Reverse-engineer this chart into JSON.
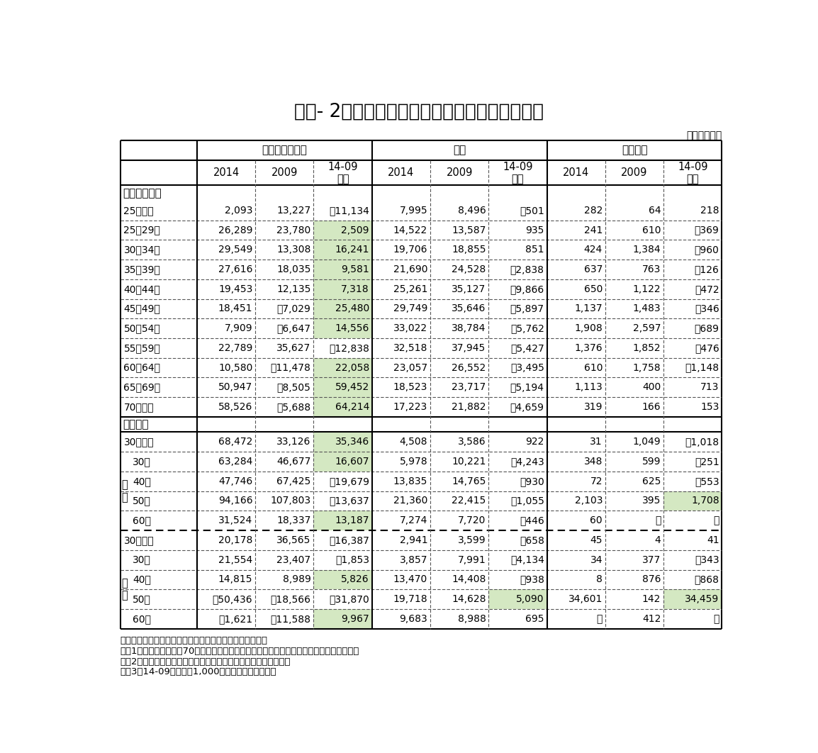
{
  "title": "図表- 2　勤労者世帯の金融商品への支出の推移",
  "unit_label": "（単位：円）",
  "col_groups": [
    "預貯金（純増）",
    "保険",
    "有価証券"
  ],
  "sub_cols": [
    "2014",
    "2009",
    "14-09\nの差"
  ],
  "section1_label": "二人以上世帯",
  "section2_label": "単身世帯",
  "rows_section1": [
    {
      "label": "25歳未満",
      "vals": [
        "2,093",
        "13,227",
        "－11,134",
        "7,995",
        "8,496",
        "－501",
        "282",
        "64",
        "218"
      ],
      "hl": [
        false,
        false,
        false,
        false,
        false,
        false,
        false,
        false,
        false
      ]
    },
    {
      "label": "25～29歳",
      "vals": [
        "26,289",
        "23,780",
        "2,509",
        "14,522",
        "13,587",
        "935",
        "241",
        "610",
        "－369"
      ],
      "hl": [
        false,
        false,
        true,
        false,
        false,
        false,
        false,
        false,
        false
      ]
    },
    {
      "label": "30～34歳",
      "vals": [
        "29,549",
        "13,308",
        "16,241",
        "19,706",
        "18,855",
        "851",
        "424",
        "1,384",
        "－960"
      ],
      "hl": [
        false,
        false,
        true,
        false,
        false,
        false,
        false,
        false,
        false
      ]
    },
    {
      "label": "35～39歳",
      "vals": [
        "27,616",
        "18,035",
        "9,581",
        "21,690",
        "24,528",
        "－2,838",
        "637",
        "763",
        "－126"
      ],
      "hl": [
        false,
        false,
        true,
        false,
        false,
        false,
        false,
        false,
        false
      ]
    },
    {
      "label": "40～44歳",
      "vals": [
        "19,453",
        "12,135",
        "7,318",
        "25,261",
        "35,127",
        "－9,866",
        "650",
        "1,122",
        "－472"
      ],
      "hl": [
        false,
        false,
        true,
        false,
        false,
        false,
        false,
        false,
        false
      ]
    },
    {
      "label": "45～49歳",
      "vals": [
        "18,451",
        "－7,029",
        "25,480",
        "29,749",
        "35,646",
        "－5,897",
        "1,137",
        "1,483",
        "－346"
      ],
      "hl": [
        false,
        false,
        true,
        false,
        false,
        false,
        false,
        false,
        false
      ]
    },
    {
      "label": "50～54歳",
      "vals": [
        "7,909",
        "－6,647",
        "14,556",
        "33,022",
        "38,784",
        "－5,762",
        "1,908",
        "2,597",
        "－689"
      ],
      "hl": [
        false,
        false,
        true,
        false,
        false,
        false,
        false,
        false,
        false
      ]
    },
    {
      "label": "55～59歳",
      "vals": [
        "22,789",
        "35,627",
        "－12,838",
        "32,518",
        "37,945",
        "－5,427",
        "1,376",
        "1,852",
        "－476"
      ],
      "hl": [
        false,
        false,
        false,
        false,
        false,
        false,
        false,
        false,
        false
      ]
    },
    {
      "label": "60～64歳",
      "vals": [
        "10,580",
        "－11,478",
        "22,058",
        "23,057",
        "26,552",
        "－3,495",
        "610",
        "1,758",
        "－1,148"
      ],
      "hl": [
        false,
        false,
        true,
        false,
        false,
        false,
        false,
        false,
        false
      ]
    },
    {
      "label": "65～69歳",
      "vals": [
        "50,947",
        "－8,505",
        "59,452",
        "18,523",
        "23,717",
        "－5,194",
        "1,113",
        "400",
        "713"
      ],
      "hl": [
        false,
        false,
        true,
        false,
        false,
        false,
        false,
        false,
        false
      ]
    },
    {
      "label": "70歳以上",
      "vals": [
        "58,526",
        "－5,688",
        "64,214",
        "17,223",
        "21,882",
        "－4,659",
        "319",
        "166",
        "153"
      ],
      "hl": [
        false,
        false,
        true,
        false,
        false,
        false,
        false,
        false,
        false
      ]
    }
  ],
  "rows_male": [
    {
      "label": "30歳未満",
      "vals": [
        "68,472",
        "33,126",
        "35,346",
        "4,508",
        "3,586",
        "922",
        "31",
        "1,049",
        "－1,018"
      ],
      "hl": [
        false,
        false,
        true,
        false,
        false,
        false,
        false,
        false,
        false
      ]
    },
    {
      "label": "30代",
      "vals": [
        "63,284",
        "46,677",
        "16,607",
        "5,978",
        "10,221",
        "－4,243",
        "348",
        "599",
        "－251"
      ],
      "hl": [
        false,
        false,
        true,
        false,
        false,
        false,
        false,
        false,
        false
      ]
    },
    {
      "label": "40代",
      "vals": [
        "47,746",
        "67,425",
        "－19,679",
        "13,835",
        "14,765",
        "－930",
        "72",
        "625",
        "－553"
      ],
      "hl": [
        false,
        false,
        false,
        false,
        false,
        false,
        false,
        false,
        false
      ]
    },
    {
      "label": "50代",
      "vals": [
        "94,166",
        "107,803",
        "－13,637",
        "21,360",
        "22,415",
        "－1,055",
        "2,103",
        "395",
        "1,708"
      ],
      "hl": [
        false,
        false,
        false,
        false,
        false,
        false,
        false,
        false,
        true
      ]
    },
    {
      "label": "60代",
      "vals": [
        "31,524",
        "18,337",
        "13,187",
        "7,274",
        "7,720",
        "－446",
        "60",
        "－",
        "－"
      ],
      "hl": [
        false,
        false,
        true,
        false,
        false,
        false,
        false,
        false,
        false
      ]
    }
  ],
  "rows_female": [
    {
      "label": "30歳未満",
      "vals": [
        "20,178",
        "36,565",
        "－16,387",
        "2,941",
        "3,599",
        "－658",
        "45",
        "4",
        "41"
      ],
      "hl": [
        false,
        false,
        false,
        false,
        false,
        false,
        false,
        false,
        false
      ]
    },
    {
      "label": "30代",
      "vals": [
        "21,554",
        "23,407",
        "－1,853",
        "3,857",
        "7,991",
        "－4,134",
        "34",
        "377",
        "－343"
      ],
      "hl": [
        false,
        false,
        false,
        false,
        false,
        false,
        false,
        false,
        false
      ]
    },
    {
      "label": "40代",
      "vals": [
        "14,815",
        "8,989",
        "5,826",
        "13,470",
        "14,408",
        "－938",
        "8",
        "876",
        "－868"
      ],
      "hl": [
        false,
        false,
        true,
        false,
        false,
        false,
        false,
        false,
        false
      ]
    },
    {
      "label": "50代",
      "vals": [
        "－50,436",
        "－18,566",
        "－31,870",
        "19,718",
        "14,628",
        "5,090",
        "34,601",
        "142",
        "34,459"
      ],
      "hl": [
        false,
        false,
        false,
        false,
        false,
        true,
        false,
        false,
        true
      ]
    },
    {
      "label": "60代",
      "vals": [
        "－1,621",
        "－11,588",
        "9,967",
        "9,683",
        "8,988",
        "695",
        "－",
        "412",
        "－"
      ],
      "hl": [
        false,
        false,
        true,
        false,
        false,
        false,
        false,
        false,
        false
      ]
    }
  ],
  "highlight_color": "#d4e8c2",
  "bg_color": "#ffffff",
  "notes": [
    "出所：総務省統計局「全国消費実態調査」各年版より作成",
    "　注1：単身世帯のうち70代以上は集計対象世帯数が限られているため表記を省略している",
    "　注2：「預貯金（純増）」は「預貯金」と「預貯金引出」の差額",
    "　注3：14-09の差が＋1,000円以上のセルに網かけ"
  ]
}
